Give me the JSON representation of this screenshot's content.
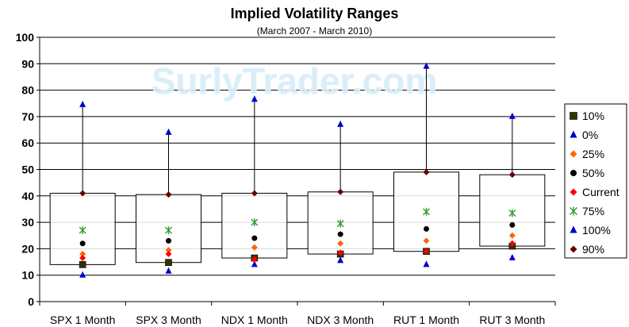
{
  "chart_data": {
    "type": "box",
    "title": "Implied Volatility Ranges",
    "subtitle": "(March 2007 - March 2010)",
    "watermark": "SurlyTrader.com",
    "ylim": [
      0,
      100
    ],
    "yticks": [
      0,
      10,
      20,
      30,
      40,
      50,
      60,
      70,
      80,
      90,
      100
    ],
    "grid": true,
    "legend_position": "right",
    "categories": [
      "SPX 1 Month",
      "SPX 3 Month",
      "NDX 1 Month",
      "NDX 3 Month",
      "RUT 1 Month",
      "RUT 3 Month"
    ],
    "box_bottom_series": "10%",
    "box_top_series": "90%",
    "whisker_top_series": "100%",
    "series": [
      {
        "name": "10%",
        "marker": "square",
        "color": "#333300",
        "values": [
          14.0,
          14.8,
          16.5,
          18.0,
          19.0,
          21.0
        ]
      },
      {
        "name": "0%",
        "marker": "triangle",
        "color": "#0000cc",
        "values": [
          10.0,
          11.5,
          14.0,
          15.5,
          14.0,
          16.5
        ]
      },
      {
        "name": "25%",
        "marker": "diamond",
        "color": "#ff6600",
        "values": [
          18.0,
          19.5,
          20.5,
          22.0,
          23.0,
          25.0
        ]
      },
      {
        "name": "50%",
        "marker": "circle",
        "color": "#000000",
        "values": [
          22.0,
          23.0,
          24.0,
          25.5,
          27.5,
          29.0
        ]
      },
      {
        "name": "Current",
        "marker": "diamond",
        "color": "#ff0000",
        "values": [
          16.5,
          18.0,
          16.0,
          18.5,
          19.0,
          22.0
        ]
      },
      {
        "name": "75%",
        "marker": "star",
        "color": "#339933",
        "values": [
          27.0,
          27.0,
          30.0,
          29.5,
          34.0,
          33.5
        ]
      },
      {
        "name": "100%",
        "marker": "triangle",
        "color": "#0000cc",
        "values": [
          74.5,
          64.0,
          76.5,
          67.0,
          89.0,
          70.0
        ]
      },
      {
        "name": "90%",
        "marker": "diamond",
        "color": "#660000",
        "values": [
          41.0,
          40.5,
          41.0,
          41.5,
          49.0,
          48.0
        ]
      }
    ]
  }
}
